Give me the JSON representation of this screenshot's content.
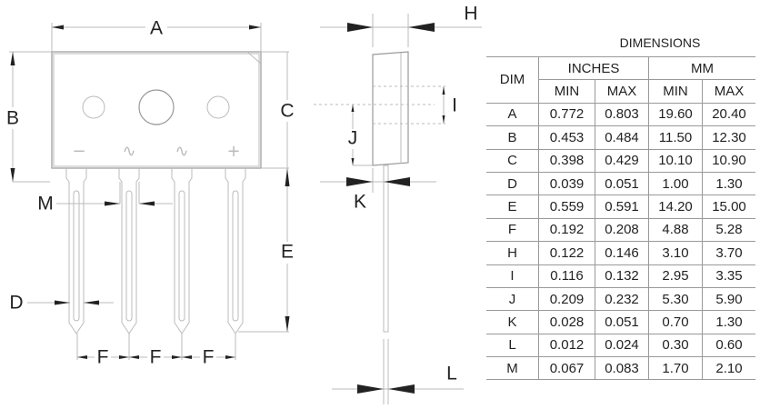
{
  "labels": {
    "A": "A",
    "B": "B",
    "C": "C",
    "D": "D",
    "E": "E",
    "F": "F",
    "H": "H",
    "I": "I",
    "J": "J",
    "K": "K",
    "L": "L",
    "M": "M"
  },
  "pin_symbols": [
    "−",
    "∿",
    "∿",
    "+"
  ],
  "table": {
    "title": "DIMENSIONS",
    "dim_header": "DIM",
    "group_headers": [
      "INCHES",
      "MM"
    ],
    "sub_headers": [
      "MIN",
      "MAX",
      "MIN",
      "MAX"
    ],
    "rows": [
      [
        "A",
        "0.772",
        "0.803",
        "19.60",
        "20.40"
      ],
      [
        "B",
        "0.453",
        "0.484",
        "11.50",
        "12.30"
      ],
      [
        "C",
        "0.398",
        "0.429",
        "10.10",
        "10.90"
      ],
      [
        "D",
        "0.039",
        "0.051",
        "1.00",
        "1.30"
      ],
      [
        "E",
        "0.559",
        "0.591",
        "14.20",
        "15.00"
      ],
      [
        "F",
        "0.192",
        "0.208",
        "4.88",
        "5.28"
      ],
      [
        "H",
        "0.122",
        "0.146",
        "3.10",
        "3.70"
      ],
      [
        "I",
        "0.116",
        "0.132",
        "2.95",
        "3.35"
      ],
      [
        "J",
        "0.209",
        "0.232",
        "5.30",
        "5.90"
      ],
      [
        "K",
        "0.028",
        "0.051",
        "0.70",
        "1.30"
      ],
      [
        "L",
        "0.012",
        "0.024",
        "0.30",
        "0.60"
      ],
      [
        "M",
        "0.067",
        "0.083",
        "1.70",
        "2.10"
      ]
    ]
  }
}
